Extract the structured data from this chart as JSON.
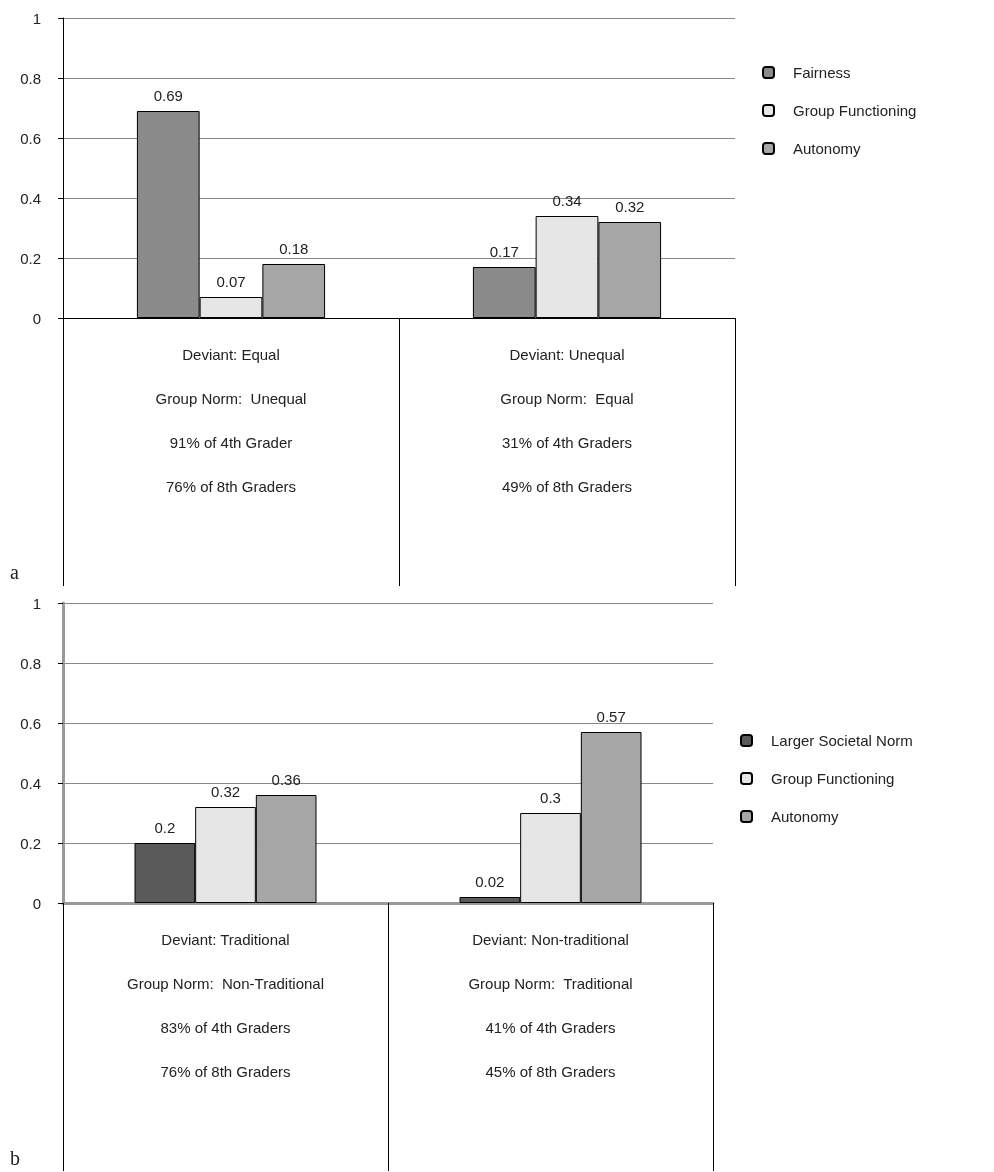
{
  "chart_data": [
    {
      "type": "bar",
      "categories": [
        "Deviant: Equal\nGroup Norm:  Unequal\n91% of 4th Grader\n76% of 8th Graders",
        "Deviant: Unequal\nGroup Norm:  Equal\n31% of 4th Graders\n49% of 8th Graders"
      ],
      "series": [
        {
          "name": "Fairness",
          "color": "#8a8a8a",
          "values": [
            0.69,
            0.17
          ]
        },
        {
          "name": "Group Functioning",
          "color": "#e6e6e6",
          "values": [
            0.07,
            0.34
          ]
        },
        {
          "name": "Autonomy",
          "color": "#a6a6a6",
          "values": [
            0.18,
            0.32
          ]
        }
      ],
      "ylim": [
        0,
        1
      ],
      "yticks": [
        0,
        0.2,
        0.4,
        0.6,
        0.8,
        1
      ],
      "grid": "y",
      "legend": "right",
      "data_labels": true,
      "annotations": [
        "a"
      ]
    },
    {
      "type": "bar",
      "categories": [
        "Deviant: Traditional\nGroup Norm:  Non-Traditional\n83% of 4th Graders\n76% of 8th Graders",
        "Deviant: Non-traditional\nGroup Norm:  Traditional\n41% of 4th Graders\n45% of 8th Graders"
      ],
      "series": [
        {
          "name": "Larger Societal Norm",
          "color": "#5a5a5a",
          "values": [
            0.2,
            0.02
          ]
        },
        {
          "name": "Group Functioning",
          "color": "#e6e6e6",
          "values": [
            0.32,
            0.3
          ]
        },
        {
          "name": "Autonomy",
          "color": "#a6a6a6",
          "values": [
            0.36,
            0.57
          ]
        }
      ],
      "ylim": [
        0,
        1
      ],
      "yticks": [
        0,
        0.2,
        0.4,
        0.6,
        0.8,
        1
      ],
      "grid": "y",
      "legend": "right",
      "data_labels": true,
      "annotations": [
        "b"
      ]
    }
  ]
}
